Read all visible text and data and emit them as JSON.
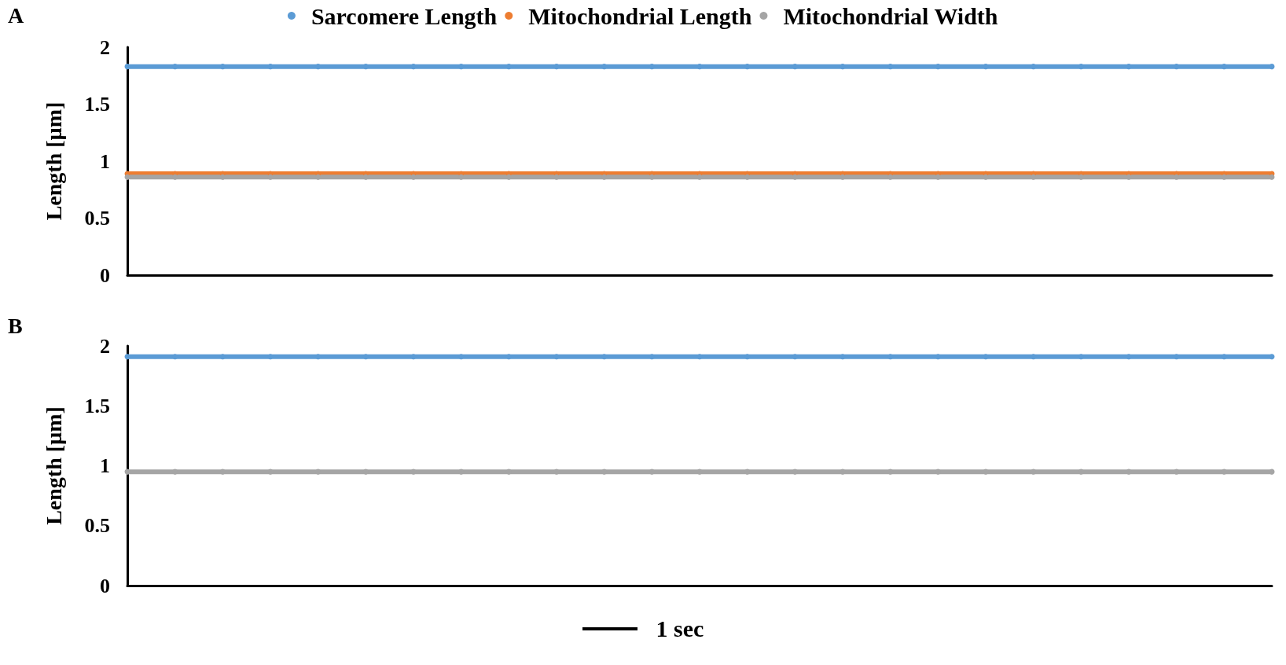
{
  "chart_data": [
    {
      "type": "line",
      "title": "A",
      "ylabel": "Length [µm]",
      "categories": [
        null,
        null,
        null,
        null,
        null,
        null,
        null,
        null,
        null,
        null,
        null,
        null,
        null,
        null,
        null,
        null,
        null,
        null,
        null,
        null,
        null,
        null,
        null,
        null,
        null
      ],
      "ylim": [
        0,
        2
      ],
      "yticks": [
        0,
        0.5,
        1,
        1.5,
        2
      ],
      "grid": false,
      "legend": "top",
      "marker": "circle",
      "line_style": "solid",
      "tick_labels": "y",
      "series": [
        {
          "name": "Sarcomere Length",
          "color": "#5b9bd5",
          "values": [
            1.83,
            1.83,
            1.83,
            1.83,
            1.83,
            1.83,
            1.83,
            1.83,
            1.83,
            1.83,
            1.83,
            1.83,
            1.83,
            1.83,
            1.83,
            1.83,
            1.83,
            1.83,
            1.83,
            1.83,
            1.83,
            1.83,
            1.83,
            1.83,
            1.83
          ]
        },
        {
          "name": "Mitochondrial Length",
          "color": "#ed7d31",
          "values": [
            0.89,
            0.89,
            0.89,
            0.89,
            0.89,
            0.89,
            0.89,
            0.89,
            0.89,
            0.89,
            0.89,
            0.89,
            0.89,
            0.89,
            0.89,
            0.89,
            0.89,
            0.89,
            0.89,
            0.89,
            0.89,
            0.89,
            0.89,
            0.89,
            0.89
          ]
        },
        {
          "name": "Mitochondrial Width",
          "color": "#a5a5a5",
          "values": [
            0.86,
            0.86,
            0.86,
            0.86,
            0.86,
            0.86,
            0.86,
            0.86,
            0.86,
            0.86,
            0.86,
            0.86,
            0.86,
            0.86,
            0.86,
            0.86,
            0.86,
            0.86,
            0.86,
            0.86,
            0.86,
            0.86,
            0.86,
            0.86,
            0.86
          ]
        }
      ]
    },
    {
      "type": "line",
      "title": "B",
      "ylabel": "Length [µm]",
      "categories": [
        null,
        null,
        null,
        null,
        null,
        null,
        null,
        null,
        null,
        null,
        null,
        null,
        null,
        null,
        null,
        null,
        null,
        null,
        null,
        null,
        null,
        null,
        null,
        null,
        null
      ],
      "ylim": [
        0,
        2
      ],
      "yticks": [
        0,
        0.5,
        1,
        1.5,
        2
      ],
      "grid": false,
      "marker": "circle",
      "line_style": "solid",
      "tick_labels": "y",
      "annotations": [
        "1 sec"
      ],
      "series": [
        {
          "color": "#5b9bd5",
          "values": [
            1.91,
            1.91,
            1.91,
            1.91,
            1.91,
            1.91,
            1.91,
            1.91,
            1.91,
            1.91,
            1.91,
            1.91,
            1.91,
            1.91,
            1.91,
            1.91,
            1.91,
            1.91,
            1.91,
            1.91,
            1.91,
            1.91,
            1.91,
            1.91,
            1.91
          ]
        },
        {
          "color": "#a5a5a5",
          "values": [
            0.95,
            0.95,
            0.95,
            0.95,
            0.95,
            0.95,
            0.95,
            0.95,
            0.95,
            0.95,
            0.95,
            0.95,
            0.95,
            0.95,
            0.95,
            0.95,
            0.95,
            0.95,
            0.95,
            0.95,
            0.95,
            0.95,
            0.95,
            0.95,
            0.95
          ]
        }
      ]
    }
  ]
}
